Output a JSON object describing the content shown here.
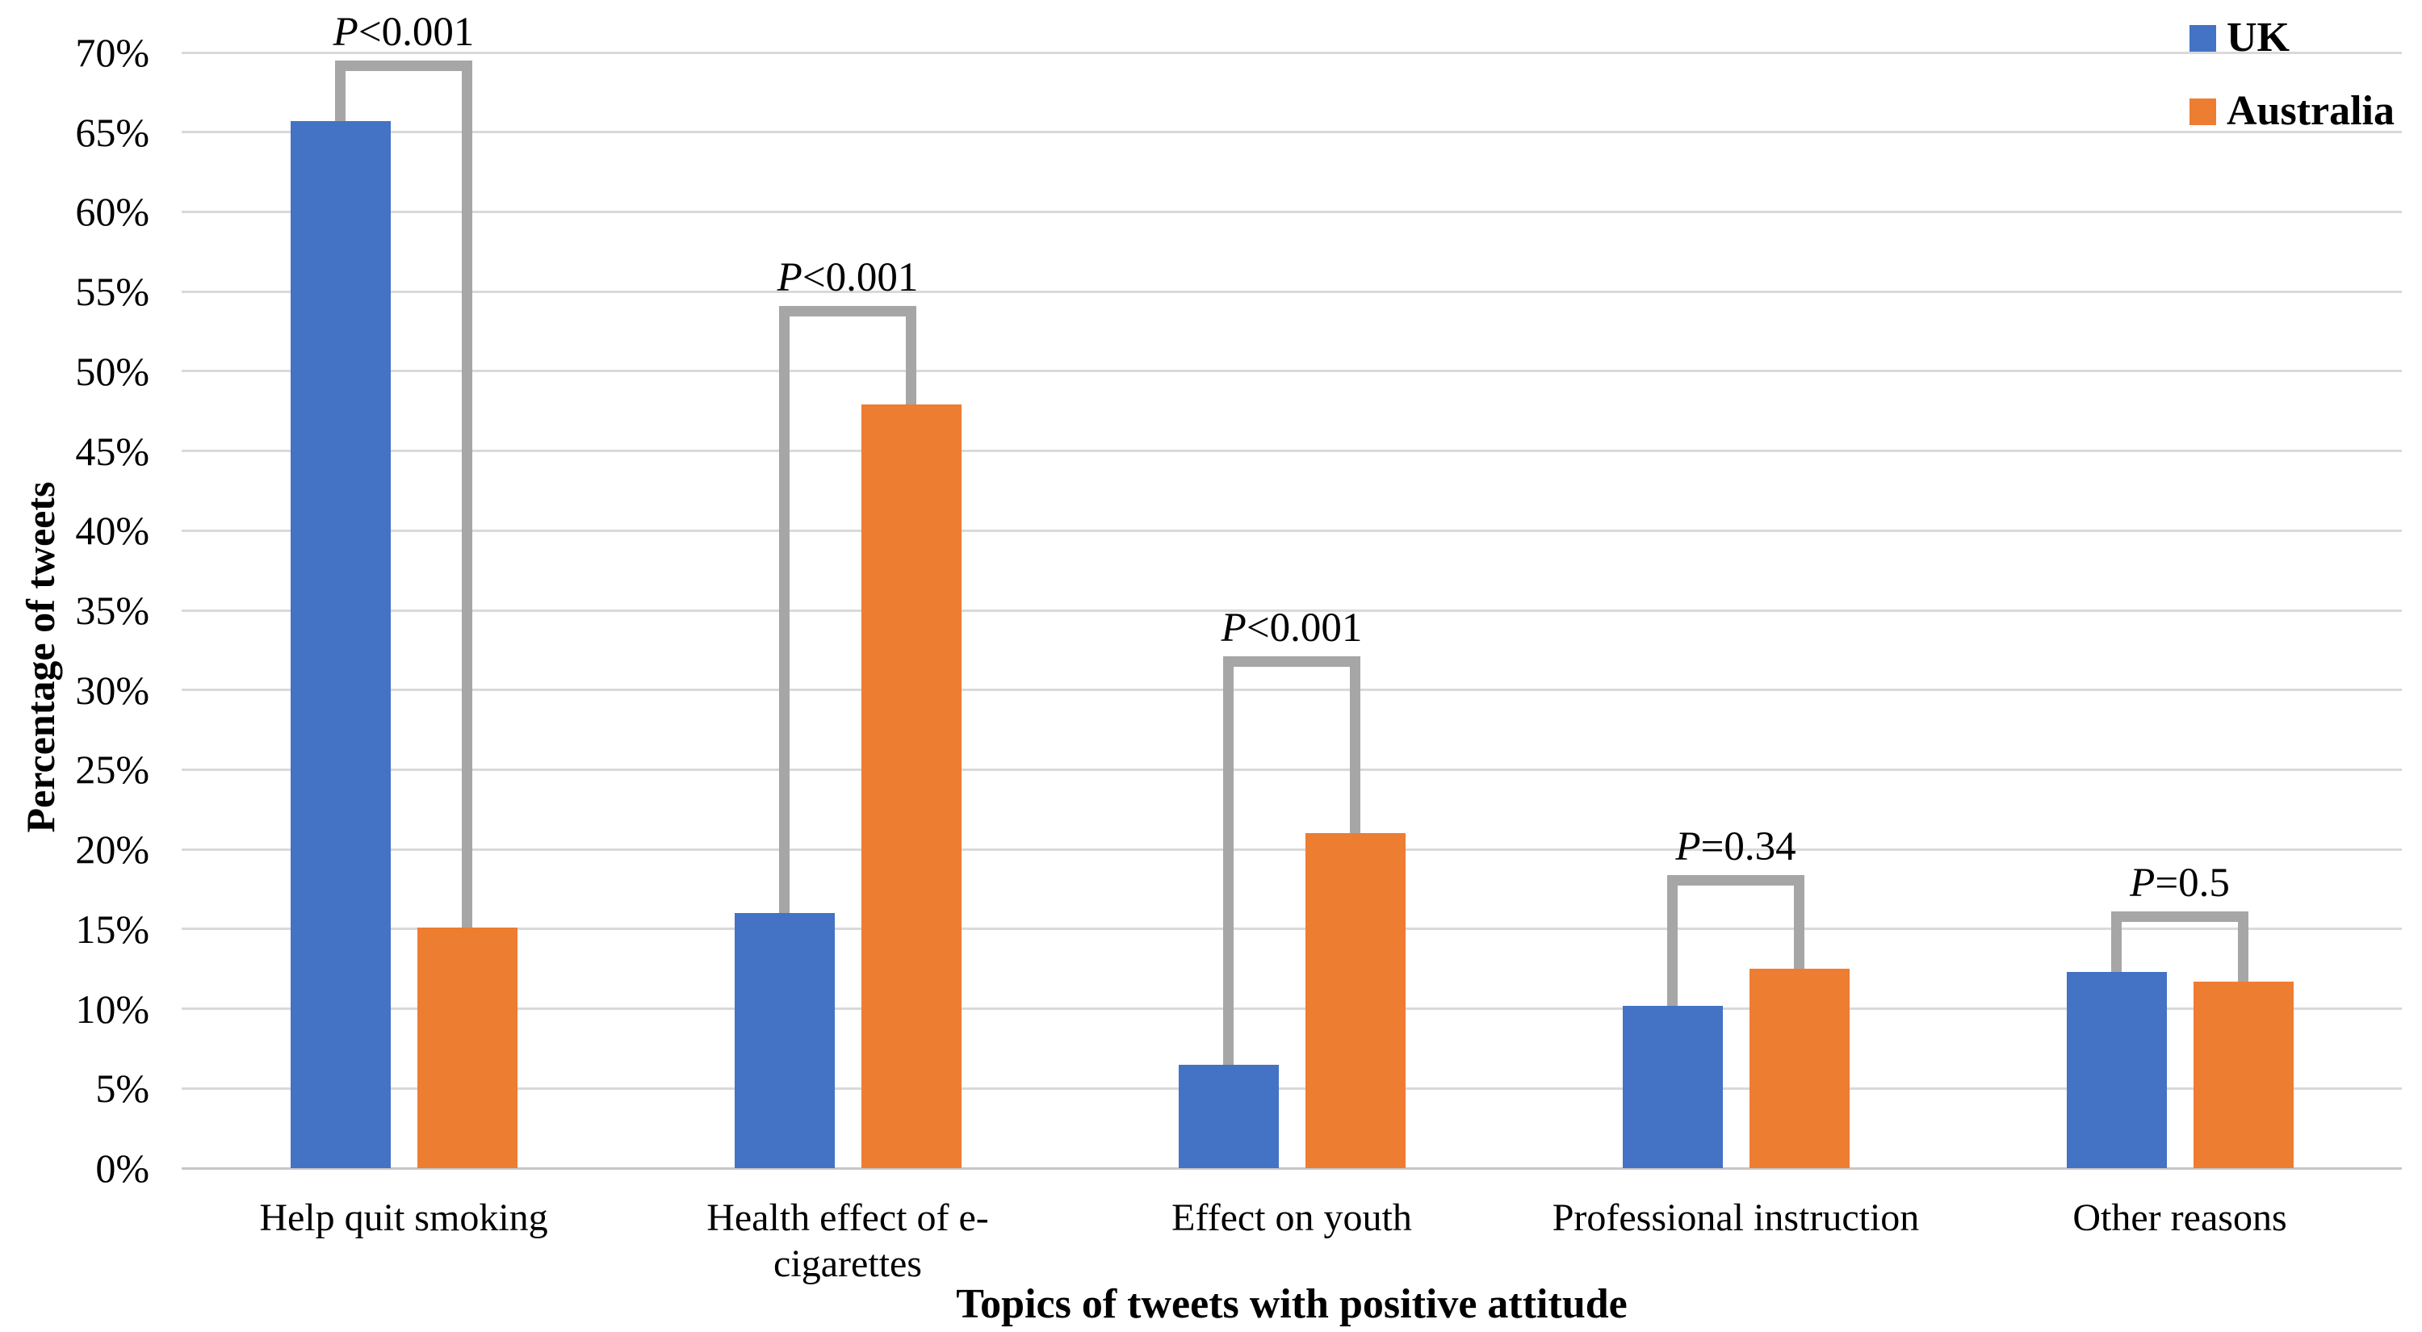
{
  "chart_data": {
    "type": "bar",
    "title": "",
    "xlabel": "Topics of tweets with positive attitude",
    "ylabel": "Percentage of tweets",
    "ylim": [
      0,
      70
    ],
    "ytick_step": 5,
    "ytick_labels": [
      "0%",
      "5%",
      "10%",
      "15%",
      "20%",
      "25%",
      "30%",
      "35%",
      "40%",
      "45%",
      "50%",
      "55%",
      "60%",
      "65%",
      "70%"
    ],
    "grid": true,
    "legend_position": "top-right",
    "categories": [
      "Help quit smoking",
      "Health effect of e-\ncigarettes",
      "Effect on youth",
      "Professional instruction",
      "Other reasons"
    ],
    "series": [
      {
        "name": "UK",
        "color": "#4472C4",
        "values": [
          65.7,
          16.0,
          6.5,
          10.2,
          12.3
        ]
      },
      {
        "name": "Australia",
        "color": "#ED7D31",
        "values": [
          15.1,
          47.9,
          21.0,
          12.5,
          11.7
        ]
      }
    ],
    "significance_brackets": [
      {
        "label": "P<0.001",
        "top": 69.5
      },
      {
        "label": "P<0.001",
        "top": 54.1
      },
      {
        "label": "P<0.001",
        "top": 32.1
      },
      {
        "label": "P=0.34",
        "top": 18.4
      },
      {
        "label": "P=0.5",
        "top": 16.1
      }
    ],
    "colors": {
      "bracket": "#A6A6A6",
      "gridline": "#D9D9D9",
      "text": "#000000",
      "background": "#FFFFFF"
    }
  }
}
